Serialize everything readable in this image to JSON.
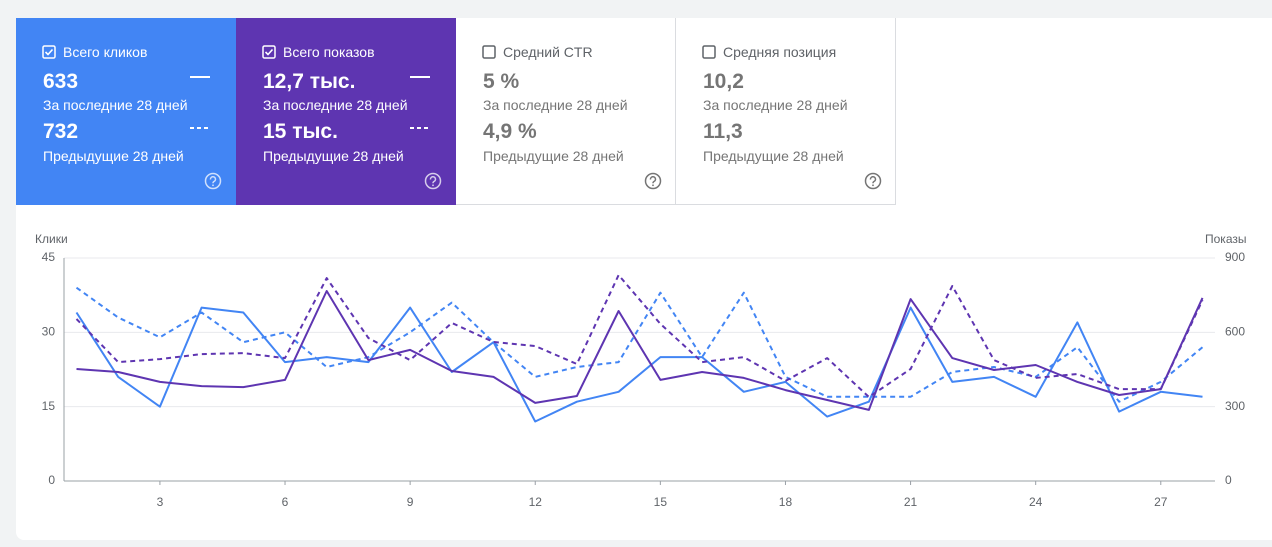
{
  "metrics": [
    {
      "label": "Всего кликов",
      "selected": true,
      "color": "#4285f4",
      "current": "633",
      "current_period": "За последние 28 дней",
      "previous": "732",
      "previous_period": "Предыдущие 28 дней"
    },
    {
      "label": "Всего показов",
      "selected": true,
      "color": "#5e35b1",
      "current": "12,7 тыс.",
      "current_period": "За последние 28 дней",
      "previous": "15 тыс.",
      "previous_period": "Предыдущие 28 дней"
    },
    {
      "label": "Средний CTR",
      "selected": false,
      "color": "#ffffff",
      "current": "5 %",
      "current_period": "За последние 28 дней",
      "previous": "4,9 %",
      "previous_period": "Предыдущие 28 дней"
    },
    {
      "label": "Средняя позиция",
      "selected": false,
      "color": "#ffffff",
      "current": "10,2",
      "current_period": "За последние 28 дней",
      "previous": "11,3",
      "previous_period": "Предыдущие 28 дней"
    }
  ],
  "chart_data": {
    "type": "line",
    "y_label": "Клики",
    "y2_label": "Показы",
    "x": [
      1,
      2,
      3,
      4,
      5,
      6,
      7,
      8,
      9,
      10,
      11,
      12,
      13,
      14,
      15,
      16,
      17,
      18,
      19,
      20,
      21,
      22,
      23,
      24,
      25,
      26,
      27,
      28
    ],
    "xlim": [
      0.7,
      28.3
    ],
    "xticks": [
      3,
      6,
      9,
      12,
      15,
      18,
      21,
      24,
      27
    ],
    "ylim": [
      0,
      45
    ],
    "yticks": [
      0,
      15,
      30,
      45
    ],
    "y2lim": [
      0,
      900
    ],
    "y2ticks": [
      0,
      300,
      600,
      900
    ],
    "grid": true,
    "series": [
      {
        "color": "#4285f4",
        "style": "solid",
        "axis": "y",
        "values": [
          34,
          21,
          15,
          35,
          34,
          24,
          25,
          24,
          35,
          22,
          28,
          12,
          16,
          18,
          25,
          25,
          18,
          20,
          13,
          16,
          35,
          20,
          21,
          17,
          32,
          14,
          18,
          17
        ]
      },
      {
        "color": "#4285f4",
        "style": "dashed",
        "axis": "y",
        "values": [
          39,
          33,
          29,
          34,
          28,
          30,
          23,
          25,
          30,
          36,
          28,
          21,
          23,
          24,
          38,
          25,
          38,
          21,
          17,
          17,
          17,
          22,
          23,
          21,
          27,
          16,
          20,
          27
        ]
      },
      {
        "color": "#5e35b1",
        "style": "solid",
        "axis": "y2",
        "values": [
          452,
          440,
          400,
          383,
          379,
          408,
          767,
          488,
          529,
          444,
          420,
          315,
          343,
          686,
          408,
          440,
          416,
          367,
          327,
          287,
          734,
          496,
          448,
          468,
          400,
          347,
          371,
          739
        ]
      },
      {
        "color": "#5e35b1",
        "style": "dashed",
        "axis": "y2",
        "values": [
          654,
          480,
          492,
          512,
          516,
          496,
          819,
          577,
          488,
          638,
          561,
          545,
          472,
          831,
          634,
          480,
          500,
          404,
          496,
          339,
          452,
          787,
          488,
          416,
          432,
          371,
          371,
          730
        ]
      }
    ]
  }
}
